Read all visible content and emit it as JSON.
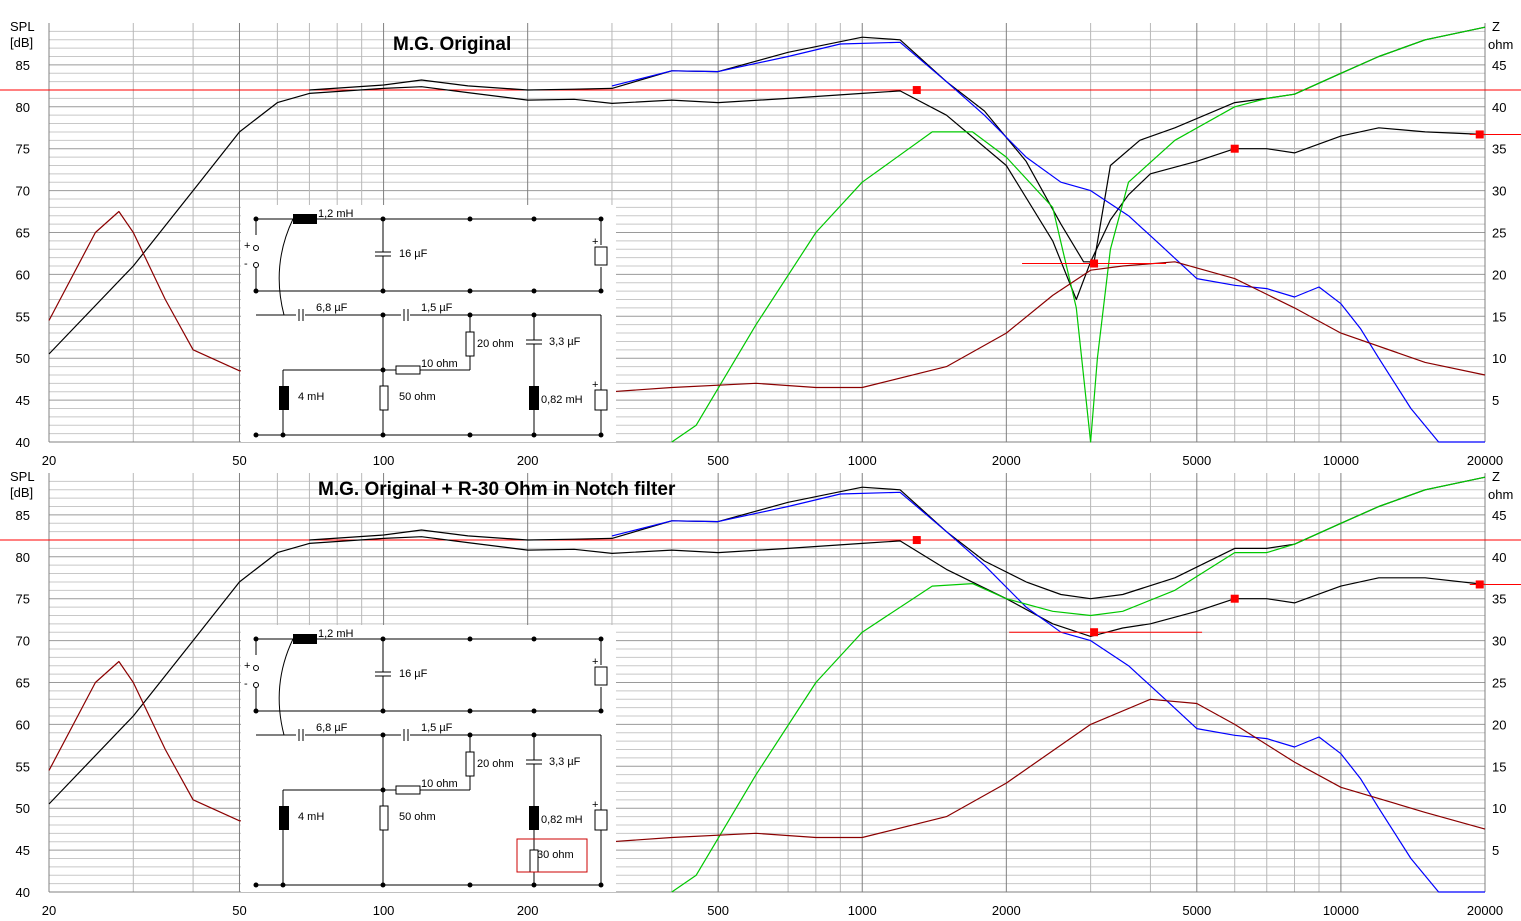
{
  "chart_data": [
    {
      "type": "line",
      "title": "M.G. Original",
      "ylabel_left_line1": "SPL",
      "ylabel_left_line2": "[dB]",
      "ylabel_right_line1": "Z",
      "ylabel_right_line2": "ohm",
      "xscale": "log",
      "xlim": [
        20,
        20000
      ],
      "ylim_left": [
        40,
        90
      ],
      "ylim_right": [
        0,
        50
      ],
      "x_tick_labels": [
        "20",
        "50",
        "100",
        "200",
        "500",
        "1000",
        "2000",
        "5000",
        "10000",
        "20000"
      ],
      "y_left_tick_labels": [
        "40",
        "45",
        "50",
        "55",
        "60",
        "65",
        "70",
        "75",
        "80",
        "85"
      ],
      "y_right_tick_labels": [
        "5",
        "10",
        "15",
        "20",
        "25",
        "30",
        "35",
        "40",
        "45"
      ],
      "grid": true,
      "reference_line_left_db": 82,
      "markers": [
        {
          "axis": "left",
          "x": 1300,
          "y": 82
        },
        {
          "axis": "left",
          "x": 3050,
          "y": 61.3
        },
        {
          "axis": "left",
          "x": 6000,
          "y": 75
        },
        {
          "axis": "left",
          "x": 19500,
          "y": 76.7
        }
      ],
      "series": [
        {
          "color": "#000000",
          "x": [
            20,
            30,
            40,
            50,
            60,
            70,
            100,
            120,
            150,
            200,
            250,
            300,
            400,
            500,
            700,
            1000,
            1200,
            1500,
            2000,
            2500,
            2800,
            3000,
            3300,
            3600,
            4000,
            5000,
            6000,
            7000,
            8000,
            10000,
            12000,
            15000,
            20000
          ],
          "y": [
            50.5,
            61,
            70,
            77,
            80.5,
            81.6,
            82.2,
            82.4,
            81.7,
            80.8,
            80.9,
            80.4,
            80.8,
            80.5,
            81,
            81.6,
            81.9,
            79,
            73,
            64,
            57,
            61.5,
            66.5,
            69.5,
            72,
            73.5,
            75,
            75,
            74.5,
            76.5,
            77.5,
            77,
            76.7
          ]
        },
        {
          "color": "#000000",
          "x": [
            70,
            100,
            120,
            150,
            200,
            250,
            300,
            400,
            500,
            700,
            1000,
            1200,
            1500,
            1800,
            2200,
            2600,
            2900,
            3050,
            3300,
            3800,
            4500,
            6000,
            7000,
            8000,
            10000,
            12000,
            15000,
            20000
          ],
          "y": [
            82,
            82.6,
            83.2,
            82.5,
            82,
            82.1,
            82.2,
            84.3,
            84.2,
            86.5,
            88.3,
            88,
            83,
            79.5,
            73.5,
            66,
            61.5,
            61.5,
            73,
            76,
            77.5,
            80.5,
            81,
            81.5,
            84,
            86,
            88,
            89.5
          ]
        },
        {
          "color": "#0000ff",
          "x": [
            300,
            400,
            500,
            700,
            900,
            1200,
            1500,
            1800,
            2200,
            2600,
            3000,
            3600,
            4200,
            5000,
            6000,
            7000,
            8000,
            9000,
            10000,
            11000,
            12000,
            14000,
            16000,
            20000
          ],
          "y": [
            82.5,
            84.3,
            84.2,
            86,
            87.5,
            87.7,
            83,
            79,
            74,
            71,
            70,
            67,
            63.5,
            59.5,
            58.7,
            58.3,
            57.3,
            58.5,
            56.5,
            53.5,
            50,
            44,
            40,
            40
          ]
        },
        {
          "color": "#00c800",
          "x": [
            400,
            450,
            600,
            800,
            1000,
            1400,
            1700,
            2000,
            2500,
            2800,
            3000,
            3100,
            3300,
            3600,
            4500,
            6000,
            7000,
            8000,
            10000,
            12000,
            15000,
            20000
          ],
          "y": [
            40,
            42,
            54,
            65,
            71,
            77,
            77,
            74,
            68,
            56,
            40,
            50,
            63,
            71,
            76,
            80,
            81,
            81.5,
            84,
            86,
            88,
            89.5
          ]
        },
        {
          "color": "#8b0000",
          "axis": "right",
          "x": [
            20,
            25,
            28,
            30,
            35,
            40,
            50,
            60,
            80,
            100,
            200,
            300,
            400,
            600,
            800,
            1000,
            1500,
            2000,
            2500,
            3000,
            3500,
            4500,
            6000,
            8000,
            10000,
            15000,
            20000
          ],
          "y": [
            14.5,
            25,
            27.5,
            25,
            17,
            11,
            8.5,
            8.5,
            8,
            8,
            7,
            6,
            6.5,
            7,
            6.5,
            6.5,
            9,
            13,
            17.5,
            20.5,
            21,
            21.5,
            19.5,
            16,
            13,
            9.5,
            8
          ]
        }
      ],
      "schematic": {
        "labels": [
          "1,2 mH",
          "16 µF",
          "6,8 µF",
          "1,5 µF",
          "20 ohm",
          "3,3 µF",
          "10 ohm",
          "4 mH",
          "50 ohm",
          "0,82 mH"
        ]
      }
    },
    {
      "type": "line",
      "title": "M.G. Original + R-30 Ohm in Notch filter",
      "ylabel_left_line1": "SPL",
      "ylabel_left_line2": "[dB]",
      "ylabel_right_line1": "Z",
      "ylabel_right_line2": "ohm",
      "xscale": "log",
      "xlim": [
        20,
        20000
      ],
      "ylim_left": [
        40,
        90
      ],
      "ylim_right": [
        0,
        50
      ],
      "x_tick_labels": [
        "20",
        "50",
        "100",
        "200",
        "500",
        "1000",
        "2000",
        "5000",
        "10000",
        "20000"
      ],
      "y_left_tick_labels": [
        "40",
        "45",
        "50",
        "55",
        "60",
        "65",
        "70",
        "75",
        "80",
        "85"
      ],
      "y_right_tick_labels": [
        "5",
        "10",
        "15",
        "20",
        "25",
        "30",
        "35",
        "40",
        "45"
      ],
      "grid": true,
      "reference_line_left_db": 82,
      "markers": [
        {
          "axis": "left",
          "x": 1300,
          "y": 82
        },
        {
          "axis": "left",
          "x": 3050,
          "y": 71
        },
        {
          "axis": "left",
          "x": 6000,
          "y": 75
        },
        {
          "axis": "left",
          "x": 19500,
          "y": 76.7
        }
      ],
      "series": [
        {
          "color": "#000000",
          "x": [
            20,
            30,
            40,
            50,
            60,
            70,
            100,
            120,
            150,
            200,
            250,
            300,
            400,
            500,
            700,
            1000,
            1200,
            1500,
            2000,
            2500,
            3000,
            3500,
            4000,
            5000,
            6000,
            7000,
            8000,
            10000,
            12000,
            15000,
            20000
          ],
          "y": [
            50.5,
            61,
            70,
            77,
            80.5,
            81.6,
            82.2,
            82.4,
            81.7,
            80.8,
            80.9,
            80.4,
            80.8,
            80.5,
            81,
            81.6,
            81.9,
            78.5,
            75,
            72,
            70.5,
            71.5,
            72,
            73.5,
            75,
            75,
            74.5,
            76.5,
            77.5,
            77.5,
            76.7
          ]
        },
        {
          "color": "#000000",
          "x": [
            70,
            100,
            120,
            150,
            200,
            250,
            300,
            400,
            500,
            700,
            1000,
            1200,
            1500,
            1800,
            2200,
            2600,
            3000,
            3500,
            4500,
            6000,
            7000,
            8000,
            10000,
            12000,
            15000,
            20000
          ],
          "y": [
            82,
            82.6,
            83.2,
            82.5,
            82,
            82.1,
            82.2,
            84.3,
            84.2,
            86.5,
            88.3,
            88,
            83,
            79.5,
            77,
            75.5,
            75,
            75.5,
            77.5,
            81,
            81,
            81.5,
            84,
            86,
            88,
            89.5
          ]
        },
        {
          "color": "#0000ff",
          "x": [
            300,
            400,
            500,
            700,
            900,
            1200,
            1500,
            1800,
            2200,
            2600,
            3000,
            3600,
            4200,
            5000,
            6000,
            7000,
            8000,
            9000,
            10000,
            11000,
            12000,
            14000,
            16000,
            20000
          ],
          "y": [
            82.5,
            84.3,
            84.2,
            86,
            87.5,
            87.7,
            83,
            79,
            74,
            71,
            70,
            67,
            63.5,
            59.5,
            58.7,
            58.3,
            57.3,
            58.5,
            56.5,
            53.5,
            50,
            44,
            40,
            40
          ]
        },
        {
          "color": "#00c800",
          "x": [
            400,
            450,
            600,
            800,
            1000,
            1400,
            1700,
            2000,
            2500,
            3000,
            3500,
            4500,
            6000,
            7000,
            8000,
            10000,
            12000,
            15000,
            20000
          ],
          "y": [
            40,
            42,
            54,
            65,
            71,
            76.5,
            76.8,
            75,
            73.5,
            73,
            73.5,
            76,
            80.5,
            80.5,
            81.5,
            84,
            86,
            88,
            89.5
          ]
        },
        {
          "color": "#8b0000",
          "axis": "right",
          "x": [
            20,
            25,
            28,
            30,
            35,
            40,
            50,
            60,
            80,
            100,
            200,
            300,
            400,
            600,
            800,
            1000,
            1500,
            2000,
            3000,
            4000,
            5000,
            6000,
            8000,
            10000,
            15000,
            20000
          ],
          "y": [
            14.5,
            25,
            27.5,
            25,
            17,
            11,
            8.5,
            8.5,
            8,
            8,
            7,
            6,
            6.5,
            7,
            6.5,
            6.5,
            9,
            13,
            20,
            23,
            22.5,
            20,
            15.5,
            12.5,
            9.5,
            7.5
          ]
        }
      ],
      "schematic": {
        "labels": [
          "1,2 mH",
          "16 µF",
          "6,8 µF",
          "1,5 µF",
          "20 ohm",
          "3,3 µF",
          "10 ohm",
          "4 mH",
          "50 ohm",
          "0,82 mH",
          "30 ohm"
        ]
      }
    }
  ]
}
